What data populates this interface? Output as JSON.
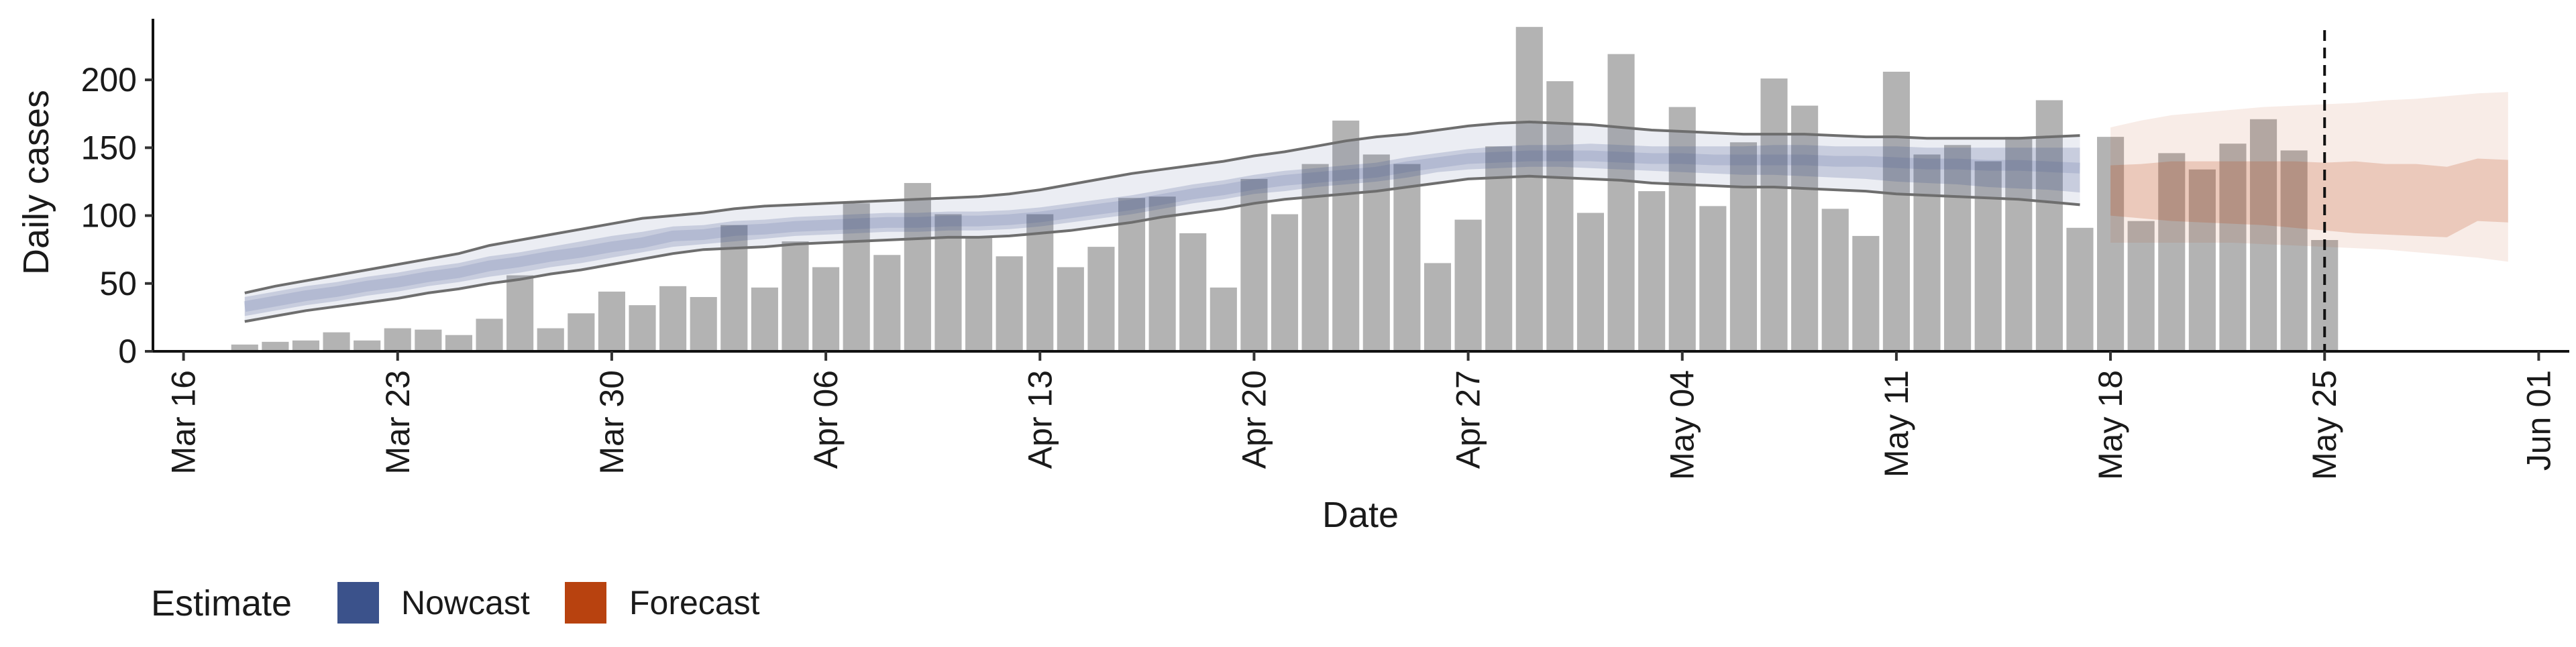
{
  "chart_data": {
    "type": "bar",
    "xlabel": "Date",
    "ylabel": "Daily cases",
    "x_start": "2020-03-15",
    "x_end": "2020-06-02",
    "ylim": [
      0,
      245
    ],
    "y_ticks": [
      0,
      50,
      100,
      150,
      200
    ],
    "x_ticks": [
      {
        "date": "2020-03-16",
        "label": "Mar 16"
      },
      {
        "date": "2020-03-23",
        "label": "Mar 23"
      },
      {
        "date": "2020-03-30",
        "label": "Mar 30"
      },
      {
        "date": "2020-04-06",
        "label": "Apr 06"
      },
      {
        "date": "2020-04-13",
        "label": "Apr 13"
      },
      {
        "date": "2020-04-20",
        "label": "Apr 20"
      },
      {
        "date": "2020-04-27",
        "label": "Apr 27"
      },
      {
        "date": "2020-05-04",
        "label": "May 04"
      },
      {
        "date": "2020-05-11",
        "label": "May 11"
      },
      {
        "date": "2020-05-18",
        "label": "May 18"
      },
      {
        "date": "2020-05-25",
        "label": "May 25"
      },
      {
        "date": "2020-06-01",
        "label": "Jun 01"
      }
    ],
    "reference_line": {
      "date": "2020-05-25",
      "style": "dashed"
    },
    "observed_cases": {
      "start_date": "2020-03-18",
      "values": [
        5,
        7,
        8,
        14,
        8,
        17,
        16,
        12,
        24,
        56,
        17,
        28,
        44,
        34,
        48,
        40,
        93,
        47,
        81,
        62,
        109,
        71,
        124,
        101,
        84,
        70,
        101,
        62,
        77,
        113,
        114,
        87,
        47,
        127,
        101,
        138,
        170,
        145,
        138,
        65,
        97,
        151,
        239,
        199,
        102,
        219,
        118,
        180,
        107,
        154,
        201,
        181,
        105,
        85,
        206,
        145,
        152,
        140,
        158,
        185,
        91,
        158,
        96,
        146,
        134,
        153,
        171,
        148,
        82
      ]
    },
    "series": [
      {
        "name": "Nowcast",
        "color": "#3b528b",
        "start_date": "2020-03-18",
        "median": [
          33,
          37,
          41,
          44,
          48,
          51,
          55,
          58,
          63,
          66,
          70,
          73,
          77,
          80,
          85,
          86,
          89,
          90,
          92,
          93,
          94,
          95,
          95,
          96,
          96,
          97,
          99,
          102,
          105,
          108,
          112,
          116,
          119,
          123,
          126,
          128,
          130,
          132,
          136,
          139,
          142,
          143,
          144,
          144,
          144,
          143,
          142,
          142,
          141,
          141,
          141,
          141,
          140,
          140,
          139,
          138,
          138,
          137,
          137,
          136,
          135
        ],
        "inner_lower": [
          26,
          30,
          34,
          37,
          41,
          44,
          48,
          51,
          55,
          58,
          62,
          65,
          69,
          73,
          77,
          79,
          81,
          83,
          85,
          86,
          87,
          88,
          88,
          89,
          89,
          90,
          92,
          95,
          98,
          101,
          105,
          109,
          112,
          116,
          118,
          121,
          123,
          125,
          128,
          132,
          134,
          135,
          136,
          136,
          135,
          134,
          133,
          132,
          131,
          130,
          130,
          129,
          128,
          127,
          125,
          124,
          123,
          121,
          120,
          119,
          117
        ],
        "inner_upper": [
          40,
          44,
          48,
          51,
          55,
          58,
          62,
          65,
          70,
          73,
          77,
          81,
          85,
          88,
          92,
          93,
          96,
          97,
          99,
          100,
          101,
          102,
          102,
          103,
          103,
          104,
          106,
          109,
          112,
          115,
          119,
          123,
          126,
          130,
          133,
          135,
          137,
          139,
          143,
          146,
          149,
          151,
          152,
          152,
          153,
          152,
          151,
          151,
          151,
          151,
          152,
          152,
          151,
          151,
          151,
          150,
          150,
          150,
          150,
          150,
          150
        ],
        "outer_lower": [
          22,
          26,
          30,
          33,
          36,
          39,
          43,
          46,
          50,
          53,
          57,
          60,
          64,
          68,
          72,
          75,
          76,
          77,
          79,
          80,
          81,
          82,
          83,
          84,
          84,
          85,
          87,
          89,
          92,
          95,
          99,
          102,
          105,
          109,
          112,
          114,
          116,
          118,
          121,
          124,
          127,
          128,
          129,
          128,
          127,
          126,
          124,
          123,
          122,
          121,
          121,
          120,
          119,
          118,
          116,
          115,
          114,
          113,
          112,
          110,
          108
        ],
        "outer_upper": [
          43,
          48,
          52,
          56,
          60,
          64,
          68,
          72,
          78,
          82,
          86,
          90,
          94,
          98,
          100,
          102,
          105,
          107,
          108,
          109,
          110,
          111,
          112,
          113,
          114,
          116,
          119,
          123,
          127,
          131,
          134,
          137,
          140,
          144,
          147,
          151,
          155,
          158,
          160,
          163,
          166,
          168,
          169,
          168,
          167,
          165,
          163,
          162,
          161,
          160,
          160,
          160,
          159,
          158,
          158,
          157,
          157,
          157,
          157,
          158,
          159
        ]
      },
      {
        "name": "Forecast",
        "color": "#b8420f",
        "start_date": "2020-05-18",
        "inner_lower": [
          100,
          98,
          96,
          95,
          94,
          93,
          91,
          89,
          87,
          86,
          85,
          84,
          96,
          95
        ],
        "inner_upper": [
          137,
          138,
          140,
          140,
          140,
          140,
          140,
          139,
          140,
          138,
          138,
          136,
          142,
          141
        ],
        "outer_lower": [
          80,
          80,
          80,
          80,
          80,
          79,
          78,
          77,
          76,
          75,
          73,
          71,
          69,
          66
        ],
        "outer_upper": [
          165,
          170,
          174,
          176,
          178,
          180,
          181,
          182,
          183,
          185,
          186,
          188,
          190,
          191
        ]
      }
    ],
    "legend": {
      "title": "Estimate",
      "position": "bottom-left",
      "entries": [
        "Nowcast",
        "Forecast"
      ]
    }
  }
}
